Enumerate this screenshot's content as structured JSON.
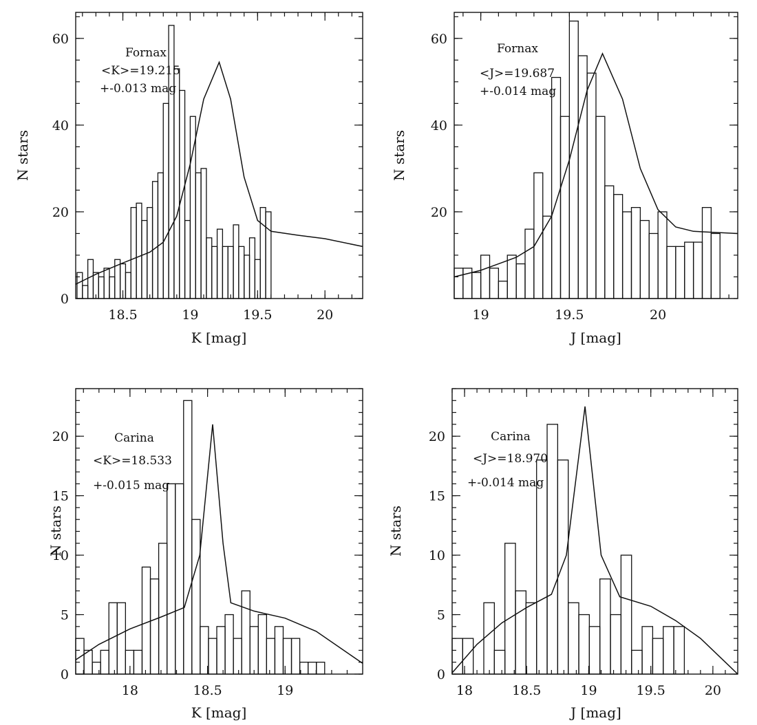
{
  "chart_data": [
    {
      "type": "histogram",
      "galaxy": "Fornax",
      "xlabel": "K [mag]",
      "ylabel": "N stars",
      "xlim": [
        18.15,
        20.28
      ],
      "ylim": [
        0,
        66
      ],
      "xticks": [
        18.5,
        19,
        19.5,
        20
      ],
      "xtick_labels": [
        "18.5",
        "19",
        "19.5",
        "20"
      ],
      "yticks": [
        0,
        20,
        40,
        60
      ],
      "ytick_labels": [
        "0",
        "20",
        "40",
        "60"
      ],
      "annotation": [
        "Fornax",
        "<K>=19.215",
        "+-0.013 mag"
      ],
      "bins": {
        "start": 18.16,
        "width": 0.04,
        "counts": [
          6,
          3,
          9,
          6,
          5,
          7,
          5,
          9,
          8,
          6,
          21,
          22,
          18,
          21,
          27,
          29,
          45,
          63,
          53,
          48,
          18,
          42,
          29,
          30,
          14,
          12,
          16,
          12,
          12,
          17,
          12,
          10,
          14,
          9,
          21,
          20
        ]
      },
      "fit": {
        "mean": 19.215,
        "peak": 54.5,
        "curve": [
          [
            18.15,
            3.3
          ],
          [
            18.3,
            5.6
          ],
          [
            18.5,
            8.2
          ],
          [
            18.7,
            10.7
          ],
          [
            18.8,
            13.0
          ],
          [
            18.9,
            19.0
          ],
          [
            19.0,
            31.0
          ],
          [
            19.1,
            46.0
          ],
          [
            19.215,
            54.5
          ],
          [
            19.3,
            46.0
          ],
          [
            19.4,
            28.0
          ],
          [
            19.5,
            18.0
          ],
          [
            19.6,
            15.5
          ],
          [
            19.8,
            14.6
          ],
          [
            20.0,
            13.8
          ],
          [
            20.28,
            12.0
          ]
        ]
      }
    },
    {
      "type": "histogram",
      "galaxy": "Fornax",
      "xlabel": "J [mag]",
      "ylabel": "N stars",
      "xlim": [
        18.85,
        20.45
      ],
      "ylim": [
        0,
        66
      ],
      "xticks": [
        19,
        19.5,
        20
      ],
      "xtick_labels": [
        "19",
        "19.5",
        "20"
      ],
      "yticks": [
        20,
        40,
        60
      ],
      "ytick_labels": [
        "20",
        "40",
        "60"
      ],
      "annotation": [
        "Fornax",
        "<J>=19.687",
        "+-0.014 mag"
      ],
      "bins": {
        "start": 18.85,
        "width": 0.05,
        "counts": [
          7,
          7,
          6,
          10,
          7,
          4,
          10,
          8,
          16,
          29,
          19,
          51,
          42,
          64,
          56,
          52,
          42,
          26,
          24,
          20,
          21,
          18,
          15,
          20,
          12,
          12,
          13,
          13,
          21,
          15
        ]
      },
      "fit": {
        "mean": 19.687,
        "peak": 56.5,
        "curve": [
          [
            18.85,
            5.0
          ],
          [
            19.0,
            6.5
          ],
          [
            19.1,
            8.0
          ],
          [
            19.2,
            9.5
          ],
          [
            19.3,
            12.0
          ],
          [
            19.4,
            19.0
          ],
          [
            19.5,
            32.0
          ],
          [
            19.6,
            48.0
          ],
          [
            19.687,
            56.5
          ],
          [
            19.8,
            46.0
          ],
          [
            19.9,
            30.0
          ],
          [
            20.0,
            20.5
          ],
          [
            20.1,
            16.5
          ],
          [
            20.2,
            15.5
          ],
          [
            20.45,
            15.0
          ]
        ]
      }
    },
    {
      "type": "histogram",
      "galaxy": "Carina",
      "xlabel": "K [mag]",
      "ylabel": "N stars",
      "xlim": [
        17.65,
        19.5
      ],
      "ylim": [
        0,
        24
      ],
      "xticks": [
        18,
        18.5,
        19
      ],
      "xtick_labels": [
        "18",
        "18.5",
        "19"
      ],
      "yticks": [
        0,
        5,
        10,
        15,
        20
      ],
      "ytick_labels": [
        "0",
        "5",
        "10",
        "15",
        "20"
      ],
      "annotation": [
        "Carina",
        "<K>=18.533",
        "+-0.015 mag"
      ],
      "bins": {
        "start": 17.65,
        "width": 0.0535,
        "counts": [
          3,
          2,
          1,
          2,
          6,
          6,
          2,
          2,
          9,
          8,
          11,
          16,
          16,
          23,
          13,
          4,
          3,
          4,
          5,
          3,
          7,
          4,
          5,
          3,
          4,
          3,
          3,
          1,
          1,
          1
        ]
      },
      "fit": {
        "mean": 18.533,
        "peak": 21.0,
        "curve": [
          [
            17.65,
            1.2
          ],
          [
            17.8,
            2.5
          ],
          [
            18.0,
            3.8
          ],
          [
            18.2,
            4.8
          ],
          [
            18.35,
            5.6
          ],
          [
            18.45,
            10.0
          ],
          [
            18.533,
            21.0
          ],
          [
            18.6,
            11.0
          ],
          [
            18.65,
            6.0
          ],
          [
            18.8,
            5.3
          ],
          [
            19.0,
            4.7
          ],
          [
            19.2,
            3.6
          ],
          [
            19.4,
            1.8
          ],
          [
            19.5,
            0.9
          ]
        ]
      }
    },
    {
      "type": "histogram",
      "galaxy": "Carina",
      "xlabel": "J [mag]",
      "ylabel": "N stars",
      "xlim": [
        17.9,
        20.2
      ],
      "ylim": [
        0,
        24
      ],
      "xticks": [
        18,
        18.5,
        19,
        19.5,
        20
      ],
      "xtick_labels": [
        "18",
        "18.5",
        "19",
        "19.5",
        "20"
      ],
      "yticks": [
        0,
        5,
        10,
        15,
        20
      ],
      "ytick_labels": [
        "0",
        "5",
        "10",
        "15",
        "20"
      ],
      "annotation": [
        "Carina",
        "<J>=18.970",
        "+-0.014 mag"
      ],
      "bins": {
        "start": 17.9,
        "width": 0.085,
        "counts": [
          3,
          3,
          0,
          6,
          2,
          11,
          7,
          6,
          18,
          21,
          18,
          6,
          5,
          4,
          8,
          5,
          10,
          2,
          4,
          3,
          4,
          4,
          0,
          0,
          0,
          0,
          0
        ]
      },
      "fit": {
        "mean": 18.97,
        "peak": 22.5,
        "curve": [
          [
            17.9,
            0.1
          ],
          [
            18.1,
            2.5
          ],
          [
            18.3,
            4.3
          ],
          [
            18.5,
            5.6
          ],
          [
            18.7,
            6.7
          ],
          [
            18.82,
            10.0
          ],
          [
            18.97,
            22.5
          ],
          [
            19.1,
            10.0
          ],
          [
            19.25,
            6.5
          ],
          [
            19.5,
            5.7
          ],
          [
            19.7,
            4.5
          ],
          [
            19.9,
            3.0
          ],
          [
            20.1,
            1.0
          ],
          [
            20.2,
            0.0
          ]
        ]
      }
    }
  ]
}
